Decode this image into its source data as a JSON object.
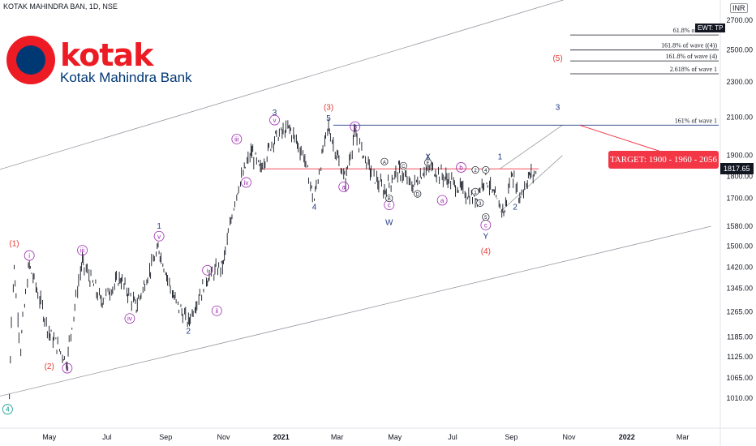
{
  "header": {
    "symbol_line": "KOTAK MAHINDRA BAN, 1D, NSE",
    "currency_tag": "INR"
  },
  "logo": {
    "word": "kotak",
    "sub": "Kotak Mahindra Bank"
  },
  "colors": {
    "up": "#131722",
    "accent_red": "#f23645",
    "wave_blue": "#1f3b84",
    "wave_purple": "#9c27b0",
    "channel": "#9598a1"
  },
  "badges": {
    "ewt": "EWT: TP",
    "current_price": "1817.65"
  },
  "target": {
    "label": "TARGET: 1900 - 1960 - 2056"
  },
  "chart_data": {
    "type": "ohlc",
    "title": "KOTAK MAHINDRA BAN, 1D, NSE",
    "y_scale": "log",
    "ylim": [
      950,
      2800
    ],
    "y_ticks": [
      1010.0,
      1065.0,
      1125.0,
      1185.0,
      1265.0,
      1345.0,
      1420.0,
      1500.0,
      1580.0,
      1700.0,
      1800.0,
      1900.0,
      2100.0,
      2300.0,
      2500.0,
      2700.0
    ],
    "x_ticks": [
      "May",
      "Jul",
      "Sep",
      "Nov",
      "2021",
      "Mar",
      "May",
      "Jul",
      "Sep",
      "Nov",
      "2022",
      "Mar"
    ],
    "x_range_months": [
      "2020-03",
      "2022-03"
    ],
    "last_price": 1817.65,
    "price_path": [
      [
        "2020-03-20",
        1010
      ],
      [
        "2020-03-25",
        1420
      ],
      [
        "2020-04-01",
        1150
      ],
      [
        "2020-04-10",
        1430
      ],
      [
        "2020-05-01",
        1200
      ],
      [
        "2020-05-20",
        1110
      ],
      [
        "2020-06-05",
        1440
      ],
      [
        "2020-06-25",
        1300
      ],
      [
        "2020-07-15",
        1380
      ],
      [
        "2020-08-01",
        1280
      ],
      [
        "2020-08-25",
        1490
      ],
      [
        "2020-09-10",
        1310
      ],
      [
        "2020-09-25",
        1230
      ],
      [
        "2020-10-15",
        1380
      ],
      [
        "2020-11-01",
        1430
      ],
      [
        "2020-11-15",
        1720
      ],
      [
        "2020-12-01",
        1920
      ],
      [
        "2020-12-10",
        1830
      ],
      [
        "2020-12-25",
        1990
      ],
      [
        "2021-01-10",
        2040
      ],
      [
        "2021-01-25",
        1900
      ],
      [
        "2021-02-05",
        1690
      ],
      [
        "2021-02-20",
        2050
      ],
      [
        "2021-03-01",
        1900
      ],
      [
        "2021-03-10",
        1780
      ],
      [
        "2021-03-20",
        2010
      ],
      [
        "2021-04-05",
        1830
      ],
      [
        "2021-04-20",
        1730
      ],
      [
        "2021-05-05",
        1830
      ],
      [
        "2021-05-20",
        1750
      ],
      [
        "2021-06-05",
        1850
      ],
      [
        "2021-06-25",
        1790
      ],
      [
        "2021-07-10",
        1740
      ],
      [
        "2021-07-25",
        1690
      ],
      [
        "2021-08-05",
        1800
      ],
      [
        "2021-08-15",
        1700
      ],
      [
        "2021-08-25",
        1640
      ],
      [
        "2021-09-02",
        1820
      ],
      [
        "2021-09-10",
        1700
      ],
      [
        "2021-09-20",
        1800
      ],
      [
        "2021-09-28",
        1818
      ]
    ],
    "horizontal_levels": [
      {
        "price": 2600,
        "label": "61.8% of wave 1"
      },
      {
        "price": 2500,
        "label": "161.8% of wave ((4))"
      },
      {
        "price": 2430,
        "label": "161.8% of wave (4)"
      },
      {
        "price": 2350,
        "label": "2.618% of wave 1"
      },
      {
        "price": 2056,
        "label": "161% of wave 1"
      },
      {
        "price": 1835,
        "label": ""
      }
    ],
    "wave_labels": [
      {
        "text": "(1)",
        "date": "2020-03-25",
        "price": 1500,
        "color": "red",
        "circled": false
      },
      {
        "text": "(2)",
        "date": "2020-05-01",
        "price": 1090,
        "color": "red",
        "circled": false
      },
      {
        "text": "4",
        "date": "2020-03-18",
        "price": 975,
        "color": "teal",
        "circled": true
      },
      {
        "text": "i",
        "date": "2020-04-10",
        "price": 1455,
        "color": "purple",
        "circled": true
      },
      {
        "text": "ii",
        "date": "2020-05-20",
        "price": 1085,
        "color": "purple",
        "circled": true
      },
      {
        "text": "iii",
        "date": "2020-06-05",
        "price": 1475,
        "color": "purple",
        "circled": true
      },
      {
        "text": "iv",
        "date": "2020-07-25",
        "price": 1235,
        "color": "purple",
        "circled": true
      },
      {
        "text": "v",
        "date": "2020-08-25",
        "price": 1530,
        "color": "purple",
        "circled": true
      },
      {
        "text": "1",
        "date": "2020-08-25",
        "price": 1570,
        "color": "blue",
        "circled": false
      },
      {
        "text": "2",
        "date": "2020-09-25",
        "price": 1195,
        "color": "blue",
        "circled": false
      },
      {
        "text": "i",
        "date": "2020-10-15",
        "price": 1400,
        "color": "purple",
        "circled": true
      },
      {
        "text": "ii",
        "date": "2020-10-25",
        "price": 1260,
        "color": "purple",
        "circled": true
      },
      {
        "text": "iii",
        "date": "2020-11-15",
        "price": 1970,
        "color": "purple",
        "circled": true
      },
      {
        "text": "iv",
        "date": "2020-11-25",
        "price": 1760,
        "color": "purple",
        "circled": true
      },
      {
        "text": "v",
        "date": "2020-12-25",
        "price": 2070,
        "color": "purple",
        "circled": true
      },
      {
        "text": "3",
        "date": "2020-12-25",
        "price": 2110,
        "color": "blue",
        "circled": false
      },
      {
        "text": "4",
        "date": "2021-02-05",
        "price": 1650,
        "color": "blue",
        "circled": false
      },
      {
        "text": "(3)",
        "date": "2021-02-20",
        "price": 2140,
        "color": "red",
        "circled": false
      },
      {
        "text": "5",
        "date": "2021-02-20",
        "price": 2080,
        "color": "blue",
        "circled": false
      },
      {
        "text": "a",
        "date": "2021-03-08",
        "price": 1740,
        "color": "purple",
        "circled": true
      },
      {
        "text": "b",
        "date": "2021-03-20",
        "price": 2035,
        "color": "purple",
        "circled": true
      },
      {
        "text": "c",
        "date": "2021-04-25",
        "price": 1660,
        "color": "purple",
        "circled": true
      },
      {
        "text": "W",
        "date": "2021-04-25",
        "price": 1585,
        "color": "blue",
        "circled": false
      },
      {
        "text": "X",
        "date": "2021-06-05",
        "price": 1880,
        "color": "blue",
        "circled": false
      },
      {
        "text": "a",
        "date": "2021-06-20",
        "price": 1680,
        "color": "purple",
        "circled": true
      },
      {
        "text": "b",
        "date": "2021-07-10",
        "price": 1830,
        "color": "purple",
        "circled": true
      },
      {
        "text": "c",
        "date": "2021-08-05",
        "price": 1575,
        "color": "purple",
        "circled": true
      },
      {
        "text": "Y",
        "date": "2021-08-05",
        "price": 1530,
        "color": "blue",
        "circled": false
      },
      {
        "text": "(4)",
        "date": "2021-08-05",
        "price": 1470,
        "color": "red",
        "circled": false
      },
      {
        "text": "1",
        "date": "2021-08-20",
        "price": 1880,
        "color": "blue",
        "circled": false
      },
      {
        "text": "2",
        "date": "2021-09-05",
        "price": 1650,
        "color": "blue",
        "circled": false
      },
      {
        "text": "3",
        "date": "2021-10-20",
        "price": 2140,
        "color": "blue",
        "circled": false
      },
      {
        "text": "(5)",
        "date": "2021-10-20",
        "price": 2430,
        "color": "red",
        "circled": false
      }
    ],
    "minor_labels": [
      {
        "text": "A",
        "date": "2021-04-20",
        "price": 1860
      },
      {
        "text": "B",
        "date": "2021-04-25",
        "price": 1690
      },
      {
        "text": "C",
        "date": "2021-05-10",
        "price": 1840
      },
      {
        "text": "D",
        "date": "2021-05-25",
        "price": 1710
      },
      {
        "text": "E",
        "date": "2021-06-05",
        "price": 1855
      },
      {
        "text": "1",
        "date": "2021-07-25",
        "price": 1720
      },
      {
        "text": "2",
        "date": "2021-07-25",
        "price": 1820
      },
      {
        "text": "3",
        "date": "2021-07-30",
        "price": 1670
      },
      {
        "text": "4",
        "date": "2021-08-05",
        "price": 1820
      },
      {
        "text": "5",
        "date": "2021-08-05",
        "price": 1610
      }
    ],
    "channel_lines": [
      {
        "from": [
          "2020-03-01",
          1820
        ],
        "to": [
          "2021-11-10",
          2880
        ]
      },
      {
        "from": [
          "2020-03-01",
          1010
        ],
        "to": [
          "2022-03-31",
          1580
        ]
      },
      {
        "from": [
          "2021-08-20",
          1835
        ],
        "to": [
          "2021-10-25",
          2056
        ]
      },
      {
        "from": [
          "2021-08-20",
          1640
        ],
        "to": [
          "2021-10-25",
          1900
        ]
      }
    ],
    "grid": false,
    "legend": "none"
  }
}
